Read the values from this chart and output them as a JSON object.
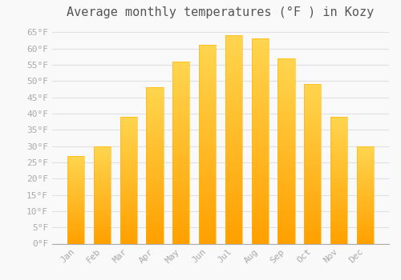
{
  "title": "Average monthly temperatures (°F ) in Kozy",
  "months": [
    "Jan",
    "Feb",
    "Mar",
    "Apr",
    "May",
    "Jun",
    "Jul",
    "Aug",
    "Sep",
    "Oct",
    "Nov",
    "Dec"
  ],
  "values": [
    27,
    30,
    39,
    48,
    56,
    61,
    64,
    63,
    57,
    49,
    39,
    30
  ],
  "bar_color_bottom": "#FFA000",
  "bar_color_top": "#FFD54F",
  "bar_edge_color": "#FFA726",
  "background_color": "#f9f9f9",
  "grid_color": "#e0e0e0",
  "tick_color": "#aaaaaa",
  "title_color": "#555555",
  "ylim": [
    0,
    68
  ],
  "yticks": [
    0,
    5,
    10,
    15,
    20,
    25,
    30,
    35,
    40,
    45,
    50,
    55,
    60,
    65
  ],
  "title_fontsize": 11,
  "tick_fontsize": 8,
  "font_family": "monospace",
  "bar_width": 0.65
}
